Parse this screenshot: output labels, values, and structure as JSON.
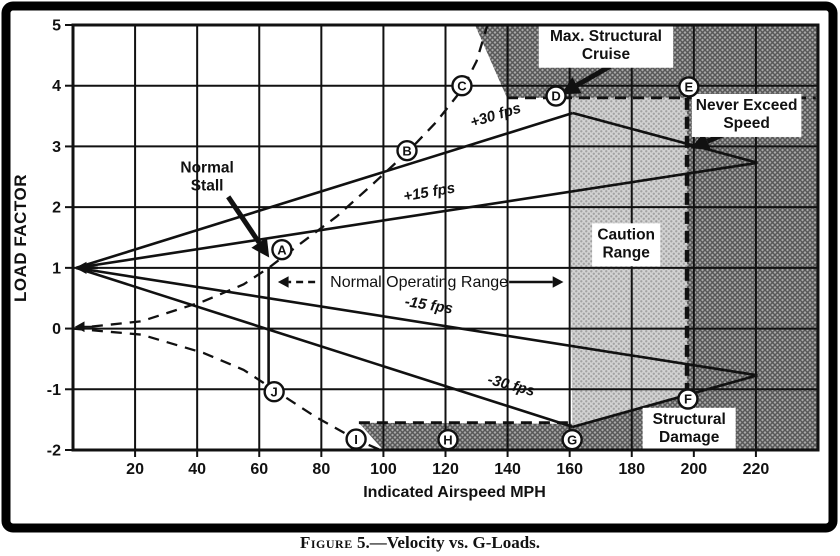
{
  "caption": {
    "figure_label": "Figure",
    "rest": " 5.—Velocity vs. G-Loads."
  },
  "chart_data": {
    "type": "line",
    "title": "Velocity vs. G-Loads",
    "xlabel": "Indicated Airspeed MPH",
    "ylabel": "LOAD FACTOR",
    "xlim": [
      0,
      240
    ],
    "ylim": [
      -2,
      5
    ],
    "x_ticks": [
      20,
      40,
      60,
      80,
      100,
      120,
      140,
      160,
      180,
      200,
      220
    ],
    "x_tick_labels": [
      "20",
      "40",
      "60",
      "80",
      "100",
      "120",
      "140",
      "160",
      "180",
      "200",
      "220"
    ],
    "y_ticks": [
      5,
      4,
      3,
      2,
      1,
      0,
      -1,
      -2
    ],
    "y_tick_labels": [
      "5",
      "4",
      "3",
      "2",
      "1",
      "0",
      "-1",
      "-2"
    ],
    "grid": true,
    "regions": [
      {
        "name": "region-structural-failure-top",
        "fill": "dark",
        "pts": [
          [
            129.5,
            5
          ],
          [
            240,
            5
          ],
          [
            240,
            3.8
          ],
          [
            139.8,
            3.8
          ]
        ]
      },
      {
        "name": "region-structural-failure-right",
        "fill": "dark",
        "pts": [
          [
            197.8,
            3.8
          ],
          [
            240,
            3.8
          ],
          [
            240,
            -2
          ],
          [
            197.8,
            -2
          ]
        ]
      },
      {
        "name": "region-structural-failure-bottom",
        "fill": "dark",
        "pts": [
          [
            92.1,
            -1.55
          ],
          [
            160.5,
            -1.57
          ],
          [
            197.8,
            -1.09
          ],
          [
            197.8,
            -2
          ],
          [
            99.9,
            -2
          ]
        ]
      },
      {
        "name": "region-caution",
        "fill": "light",
        "pts": [
          [
            160,
            3.8
          ],
          [
            197.8,
            3.8
          ],
          [
            197.8,
            -1.09
          ],
          [
            160.8,
            -1.62
          ]
        ]
      }
    ],
    "boundaries": [
      {
        "name": "positive-limit-load-dashed",
        "pts": [
          [
            139.8,
            3.8
          ],
          [
            239.3,
            3.8
          ]
        ],
        "w": 2.8,
        "dash": "11 7"
      },
      {
        "name": "negative-limit-load-dashed",
        "pts": [
          [
            92.1,
            -1.55
          ],
          [
            160.5,
            -1.55
          ]
        ],
        "w": 2.8,
        "dash": "11 7"
      },
      {
        "name": "never-exceed-speed-line",
        "pts": [
          [
            197.8,
            3.8
          ],
          [
            197.8,
            -2
          ]
        ],
        "w": 4.5,
        "dash": "12 7"
      }
    ],
    "series": [
      {
        "name": "gust-line-plus30",
        "points": [
          [
            1,
            1
          ],
          [
            161,
            3.55
          ]
        ]
      },
      {
        "name": "gust-line-plus15",
        "points": [
          [
            1,
            1
          ],
          [
            220.5,
            2.73
          ]
        ]
      },
      {
        "name": "gust-line-minus15",
        "points": [
          [
            1,
            1
          ],
          [
            220.5,
            -0.77
          ]
        ]
      },
      {
        "name": "gust-line-minus30",
        "points": [
          [
            1,
            1
          ],
          [
            161,
            -1.62
          ]
        ]
      },
      {
        "name": "envelope-upper",
        "points": [
          [
            161,
            3.55
          ],
          [
            220.5,
            2.73
          ]
        ]
      },
      {
        "name": "envelope-lower",
        "points": [
          [
            161,
            -1.62
          ],
          [
            220.5,
            -0.77
          ]
        ]
      },
      {
        "name": "stall-speed-vertical",
        "points": [
          [
            63,
            1
          ],
          [
            63,
            -1.0
          ]
        ]
      }
    ],
    "stall_curves": [
      {
        "name": "positive-stall-curve",
        "dash": "11 8",
        "points": [
          [
            0,
            0
          ],
          [
            22,
            0.12
          ],
          [
            42,
            0.45
          ],
          [
            55,
            0.73
          ],
          [
            63,
            1
          ],
          [
            72,
            1.35
          ],
          [
            85,
            1.85
          ],
          [
            97,
            2.4
          ],
          [
            108,
            2.92
          ],
          [
            117,
            3.4
          ],
          [
            125.5,
            3.95
          ],
          [
            130,
            4.4
          ],
          [
            133.5,
            5
          ]
        ]
      },
      {
        "name": "negative-stall-curve",
        "dash": "11 8",
        "points": [
          [
            0,
            0
          ],
          [
            22,
            -0.1
          ],
          [
            42,
            -0.4
          ],
          [
            55,
            -0.68
          ],
          [
            66,
            -1.05
          ],
          [
            78,
            -1.45
          ],
          [
            91,
            -1.82
          ],
          [
            99,
            -2
          ]
        ]
      }
    ],
    "gust_labels": [
      {
        "text": "+30 fps",
        "v": 136.6,
        "n": 3.44,
        "rot": -17
      },
      {
        "text": "+15 fps",
        "v": 115.0,
        "n": 2.17,
        "rot": -10
      },
      {
        "text": "-15 fps",
        "v": 114.4,
        "n": 0.31,
        "rot": 9
      },
      {
        "text": "-30 fps",
        "v": 140.8,
        "n": -1.01,
        "rot": 15
      }
    ],
    "callouts": [
      {
        "name": "label-max-structural-cruise",
        "lines": [
          "Max. Structural",
          "Cruise"
        ],
        "v": 171.7,
        "n": 4.65,
        "box": true
      },
      {
        "name": "label-never-exceed-speed",
        "lines": [
          "Never Exceed",
          "Speed"
        ],
        "v": 217.0,
        "n": 3.51,
        "box": true
      },
      {
        "name": "label-caution-range",
        "lines": [
          "Caution",
          "Range"
        ],
        "v": 178.2,
        "n": 1.38,
        "box": true
      },
      {
        "name": "label-structural-damage",
        "lines": [
          "Structural",
          "Damage"
        ],
        "v": 198.5,
        "n": -1.66,
        "box": true
      },
      {
        "name": "label-normal-stall",
        "lines": [
          "Normal",
          "Stall"
        ],
        "v": 43.2,
        "n": 2.48,
        "box": false
      }
    ],
    "arrows": [
      {
        "name": "normal-stall-arrow",
        "from": [
          50,
          2.17
        ],
        "to": [
          63.2,
          1.17
        ],
        "w": 5
      },
      {
        "name": "max-cruise-arrow",
        "from": [
          173,
          4.32
        ],
        "to": [
          157.3,
          3.86
        ],
        "w": 5
      },
      {
        "name": "never-exceed-arrow",
        "from": [
          209.7,
          3.2
        ],
        "to": [
          199,
          2.97
        ],
        "w": 5
      },
      {
        "name": "gust-origin-arrow",
        "from": [
          8,
          1
        ],
        "to": [
          0.7,
          1
        ],
        "w": 2.6
      },
      {
        "name": "stall-origin-arrow",
        "from": [
          6.5,
          0.03
        ],
        "to": [
          0.6,
          0.03
        ],
        "w": 2
      }
    ],
    "operating_range": {
      "text": "Normal Operating Range",
      "n": 0.767,
      "text_v": 111.5,
      "left_tail_v": 78,
      "left_head_v": 66,
      "right_tail_v": 140.5,
      "right_head_v": 158
    },
    "points": [
      {
        "label": "A",
        "v": 67.3,
        "n": 1.3
      },
      {
        "label": "B",
        "v": 107.6,
        "n": 2.93
      },
      {
        "label": "C",
        "v": 125.3,
        "n": 4.0
      },
      {
        "label": "D",
        "v": 155.6,
        "n": 3.83
      },
      {
        "label": "E",
        "v": 198.4,
        "n": 3.98
      },
      {
        "label": "F",
        "v": 198.1,
        "n": -1.16
      },
      {
        "label": "G",
        "v": 160.8,
        "n": -1.83
      },
      {
        "label": "H",
        "v": 120.8,
        "n": -1.83
      },
      {
        "label": "I",
        "v": 91.2,
        "n": -1.82
      },
      {
        "label": "J",
        "v": 64.8,
        "n": -1.04
      }
    ]
  }
}
